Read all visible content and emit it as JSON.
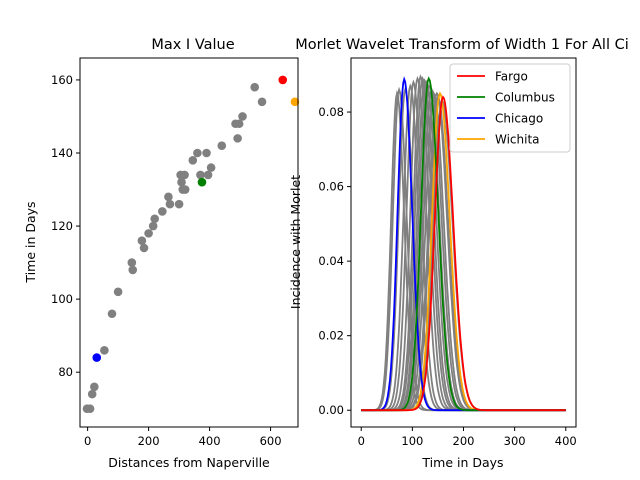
{
  "chart_data": [
    {
      "type": "scatter",
      "title": "Max I Value",
      "xlabel": "Distances from Naperville",
      "ylabel": "Time in Days",
      "xlim": [
        -25,
        690
      ],
      "ylim": [
        65,
        166
      ],
      "xticks": [
        0,
        200,
        400,
        600
      ],
      "yticks": [
        80,
        100,
        120,
        140,
        160
      ],
      "grid": false,
      "highlight_colors": {
        "Fargo": "#ff0000",
        "Columbus": "#008000",
        "Chicago": "#0000ff",
        "Wichita": "#ffa500",
        "other": "#808080"
      },
      "points": [
        {
          "x": -2,
          "y": 70,
          "c": "other"
        },
        {
          "x": 8,
          "y": 70,
          "c": "other"
        },
        {
          "x": 15,
          "y": 74,
          "c": "other"
        },
        {
          "x": 22,
          "y": 76,
          "c": "other"
        },
        {
          "x": 30,
          "y": 84,
          "c": "Chicago"
        },
        {
          "x": 55,
          "y": 86,
          "c": "other"
        },
        {
          "x": 80,
          "y": 96,
          "c": "other"
        },
        {
          "x": 100,
          "y": 102,
          "c": "other"
        },
        {
          "x": 145,
          "y": 110,
          "c": "other"
        },
        {
          "x": 148,
          "y": 108,
          "c": "other"
        },
        {
          "x": 178,
          "y": 116,
          "c": "other"
        },
        {
          "x": 185,
          "y": 114,
          "c": "other"
        },
        {
          "x": 200,
          "y": 118,
          "c": "other"
        },
        {
          "x": 215,
          "y": 120,
          "c": "other"
        },
        {
          "x": 220,
          "y": 122,
          "c": "other"
        },
        {
          "x": 245,
          "y": 124,
          "c": "other"
        },
        {
          "x": 265,
          "y": 128,
          "c": "other"
        },
        {
          "x": 270,
          "y": 126,
          "c": "other"
        },
        {
          "x": 300,
          "y": 126,
          "c": "other"
        },
        {
          "x": 305,
          "y": 134,
          "c": "other"
        },
        {
          "x": 308,
          "y": 132,
          "c": "other"
        },
        {
          "x": 312,
          "y": 130,
          "c": "other"
        },
        {
          "x": 318,
          "y": 134,
          "c": "other"
        },
        {
          "x": 320,
          "y": 130,
          "c": "other"
        },
        {
          "x": 345,
          "y": 138,
          "c": "other"
        },
        {
          "x": 360,
          "y": 140,
          "c": "other"
        },
        {
          "x": 370,
          "y": 134,
          "c": "other"
        },
        {
          "x": 375,
          "y": 132,
          "c": "Columbus"
        },
        {
          "x": 390,
          "y": 140,
          "c": "other"
        },
        {
          "x": 395,
          "y": 134,
          "c": "other"
        },
        {
          "x": 405,
          "y": 136,
          "c": "other"
        },
        {
          "x": 440,
          "y": 142,
          "c": "other"
        },
        {
          "x": 485,
          "y": 148,
          "c": "other"
        },
        {
          "x": 492,
          "y": 144,
          "c": "other"
        },
        {
          "x": 497,
          "y": 148,
          "c": "other"
        },
        {
          "x": 508,
          "y": 150,
          "c": "other"
        },
        {
          "x": 548,
          "y": 158,
          "c": "other"
        },
        {
          "x": 572,
          "y": 154,
          "c": "other"
        },
        {
          "x": 640,
          "y": 160,
          "c": "Fargo"
        },
        {
          "x": 680,
          "y": 154,
          "c": "Wichita"
        }
      ]
    },
    {
      "type": "line",
      "title": "Morlet Wavelet Transform of Width 1 For All Ci",
      "xlabel": "Time in Days",
      "ylabel": "Incidence with Morlet",
      "xlim": [
        -20,
        420
      ],
      "ylim": [
        -0.0045,
        0.0945
      ],
      "xticks": [
        0,
        100,
        200,
        300,
        400
      ],
      "yticks": [
        0.0,
        0.02,
        0.04,
        0.06,
        0.08
      ],
      "ytick_labels": [
        "0.00",
        "0.02",
        "0.04",
        "0.06",
        "0.08"
      ],
      "grid": false,
      "legend_position": "upper right",
      "series": [
        {
          "name": "Fargo",
          "color": "#ff0000",
          "peak_x": 160,
          "peak_y": 0.084,
          "width": 28
        },
        {
          "name": "Columbus",
          "color": "#008000",
          "peak_x": 132,
          "peak_y": 0.089,
          "width": 26
        },
        {
          "name": "Chicago",
          "color": "#0000ff",
          "peak_x": 84,
          "peak_y": 0.0888,
          "width": 22
        },
        {
          "name": "Wichita",
          "color": "#ffa500",
          "peak_x": 154,
          "peak_y": 0.085,
          "width": 27
        }
      ],
      "background_series": {
        "color": "#808080",
        "curves": [
          {
            "peak_x": 70,
            "peak_y": 0.085,
            "width": 20
          },
          {
            "peak_x": 74,
            "peak_y": 0.086,
            "width": 21
          },
          {
            "peak_x": 86,
            "peak_y": 0.086,
            "width": 22
          },
          {
            "peak_x": 96,
            "peak_y": 0.087,
            "width": 23
          },
          {
            "peak_x": 102,
            "peak_y": 0.088,
            "width": 23
          },
          {
            "peak_x": 110,
            "peak_y": 0.089,
            "width": 24
          },
          {
            "peak_x": 116,
            "peak_y": 0.0895,
            "width": 24
          },
          {
            "peak_x": 120,
            "peak_y": 0.089,
            "width": 25
          },
          {
            "peak_x": 124,
            "peak_y": 0.0885,
            "width": 25
          },
          {
            "peak_x": 128,
            "peak_y": 0.088,
            "width": 26
          },
          {
            "peak_x": 134,
            "peak_y": 0.087,
            "width": 26
          },
          {
            "peak_x": 138,
            "peak_y": 0.086,
            "width": 27
          },
          {
            "peak_x": 142,
            "peak_y": 0.085,
            "width": 27
          },
          {
            "peak_x": 148,
            "peak_y": 0.085,
            "width": 28
          },
          {
            "peak_x": 150,
            "peak_y": 0.084,
            "width": 28
          },
          {
            "peak_x": 158,
            "peak_y": 0.083,
            "width": 29
          }
        ]
      }
    }
  ]
}
